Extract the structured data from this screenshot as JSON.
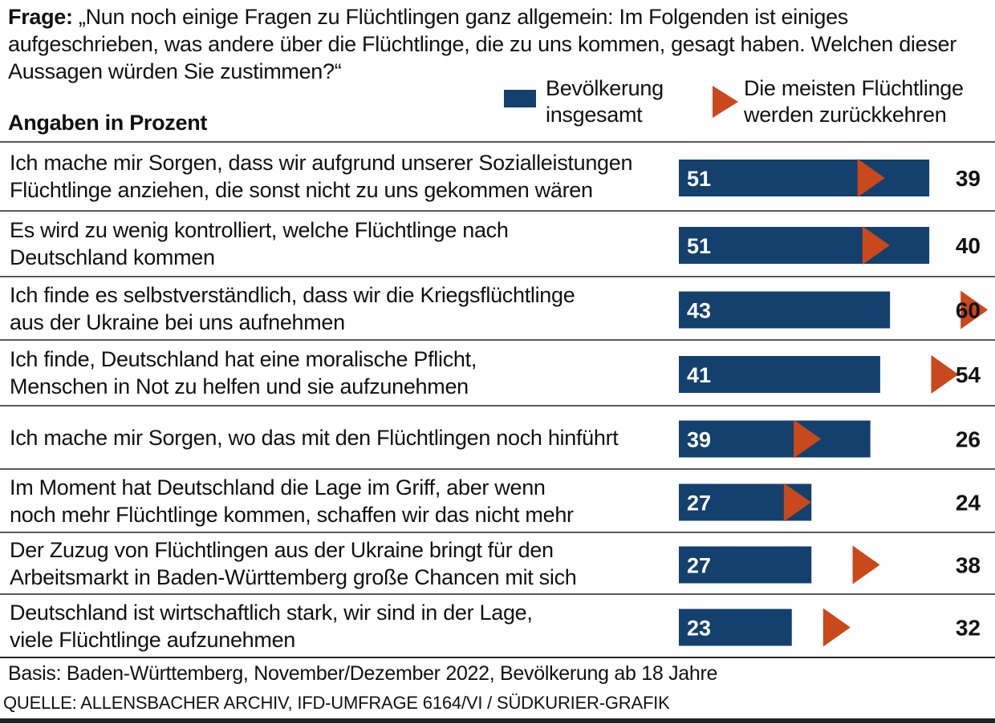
{
  "header": {
    "question_prefix": "Frage:",
    "question_text": "„Nun noch einige Fragen zu Flüchtlingen ganz allgemein: Im Folgenden ist einiges aufgeschrieben, was andere über die Flüchtlinge, die zu uns kommen, gesagt haben. Welchen dieser Aussagen würden Sie zustimmen?“",
    "unit_label": "Angaben in Prozent"
  },
  "legend": {
    "series1_line1": "Bevölkerung",
    "series1_line2": "insgesamt",
    "series2_line1": "Die meisten Flüchtlinge",
    "series2_line2": "werden zurückkehren"
  },
  "footer": {
    "basis": "Basis: Baden-Württemberg, November/Dezember 2022, Bevölkerung ab 18 Jahre",
    "source": "QUELLE: ALLENSBACHER ARCHIV, IFD-UMFRAGE 6164/VI / SÜDKURIER-GRAFIK"
  },
  "colors": {
    "bar": "#14406e",
    "marker": "#c9481c",
    "divider": "#222222"
  },
  "chart_data": {
    "type": "bar",
    "orientation": "horizontal",
    "categories": [
      [
        "Ich mache mir Sorgen, dass wir aufgrund unserer Sozialleistungen",
        "Flüchtlinge anziehen, die sonst nicht zu uns gekommen wären"
      ],
      [
        "Es wird zu wenig kontrolliert, welche Flüchtlinge nach",
        "Deutschland kommen"
      ],
      [
        "Ich finde es selbstverständlich, dass wir die Kriegsflüchtlinge",
        "aus der Ukraine bei uns aufnehmen"
      ],
      [
        "Ich finde, Deutschland hat eine moralische Pflicht,",
        "Menschen in Not zu helfen und sie aufzunehmen"
      ],
      [
        "Ich mache mir Sorgen, wo das mit den Flüchtlingen noch hinführt"
      ],
      [
        "Im Moment hat Deutschland die Lage im Griff, aber wenn",
        "noch mehr Flüchtlinge kommen, schaffen wir das nicht mehr"
      ],
      [
        "Der Zuzug von Flüchtlingen aus der Ukraine bringt für den",
        "Arbeitsmarkt in Baden-Württemberg große Chancen mit sich"
      ],
      [
        "Deutschland ist wirtschaftlich stark, wir sind in der Lage,",
        "viele Flüchtlinge aufzunehmen"
      ]
    ],
    "series": [
      {
        "name": "Bevölkerung insgesamt",
        "marker": "bar",
        "values": [
          51,
          51,
          43,
          41,
          39,
          27,
          27,
          23
        ]
      },
      {
        "name": "Die meisten Flüchtlinge werden zurückkehren",
        "marker": "triangle",
        "values": [
          39,
          40,
          60,
          54,
          26,
          24,
          38,
          32
        ]
      }
    ],
    "xlim": [
      0,
      60
    ],
    "grid": false,
    "legend_position": "top-right"
  }
}
